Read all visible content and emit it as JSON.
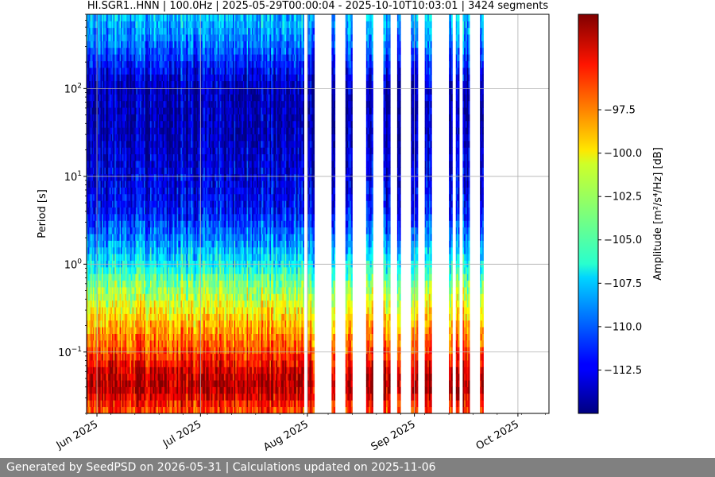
{
  "chart_data": {
    "type": "heatmap",
    "title": "HI.SGR1..HNN | 100.0Hz | 2025-05-29T00:00:04 - 2025-10-10T10:03:01 | 3424 segments",
    "ylabel": "Period [s]",
    "y_scale": "log",
    "y_inverted": true,
    "ylim": [
      0.02,
      700
    ],
    "y_ticks": [
      {
        "value": 0.1,
        "base": "10",
        "exp": "−1"
      },
      {
        "value": 1,
        "base": "10",
        "exp": "0"
      },
      {
        "value": 10,
        "base": "10",
        "exp": "1"
      },
      {
        "value": 100,
        "base": "10",
        "exp": "2"
      }
    ],
    "xlim": [
      "2025-05-29",
      "2025-10-10"
    ],
    "x_ticks": [
      {
        "date": "2025-06-01",
        "label": "Jun 2025"
      },
      {
        "date": "2025-07-01",
        "label": "Jul 2025"
      },
      {
        "date": "2025-08-01",
        "label": "Aug 2025"
      },
      {
        "date": "2025-09-01",
        "label": "Sep 2025"
      },
      {
        "date": "2025-10-01",
        "label": "Oct 2025"
      }
    ],
    "grid": true,
    "colormap": "jet",
    "colorbar": {
      "label": "Amplitude [m²/s⁴/Hz] [dB]",
      "range": [
        -115,
        -92
      ],
      "ticks": [
        {
          "value": -97.5,
          "label": "−97.5"
        },
        {
          "value": -100,
          "label": "−100.0"
        },
        {
          "value": -102.5,
          "label": "−102.5"
        },
        {
          "value": -105,
          "label": "−105.0"
        },
        {
          "value": -107.5,
          "label": "−107.5"
        },
        {
          "value": -110,
          "label": "−110.0"
        },
        {
          "value": -112.5,
          "label": "−112.5"
        }
      ]
    },
    "coverage": [
      {
        "start": "2025-05-29",
        "end": "2025-07-31"
      },
      {
        "start": "2025-08-01",
        "end": "2025-08-03"
      },
      {
        "start": "2025-08-08",
        "end": "2025-08-09"
      },
      {
        "start": "2025-08-12",
        "end": "2025-08-14"
      },
      {
        "start": "2025-08-18",
        "end": "2025-08-20"
      },
      {
        "start": "2025-08-23",
        "end": "2025-08-25"
      },
      {
        "start": "2025-08-27",
        "end": "2025-08-28"
      },
      {
        "start": "2025-08-31",
        "end": "2025-09-02"
      },
      {
        "start": "2025-09-04",
        "end": "2025-09-06"
      },
      {
        "start": "2025-09-11",
        "end": "2025-09-12"
      },
      {
        "start": "2025-09-13",
        "end": "2025-09-14"
      },
      {
        "start": "2025-09-15",
        "end": "2025-09-17"
      },
      {
        "start": "2025-09-20",
        "end": "2025-09-21"
      }
    ],
    "amplitude_profile": [
      {
        "period": 0.02,
        "db": -97
      },
      {
        "period": 0.04,
        "db": -93
      },
      {
        "period": 0.06,
        "db": -94
      },
      {
        "period": 0.1,
        "db": -96.5
      },
      {
        "period": 0.2,
        "db": -99
      },
      {
        "period": 0.4,
        "db": -102
      },
      {
        "period": 0.7,
        "db": -104.5
      },
      {
        "period": 1,
        "db": -106.5
      },
      {
        "period": 2,
        "db": -109.5
      },
      {
        "period": 4,
        "db": -112
      },
      {
        "period": 10,
        "db": -113
      },
      {
        "period": 30,
        "db": -114
      },
      {
        "period": 100,
        "db": -114
      },
      {
        "period": 300,
        "db": -110
      },
      {
        "period": 500,
        "db": -108.5
      },
      {
        "period": 700,
        "db": -108
      }
    ]
  },
  "footer": {
    "text": "Generated by SeedPSD on 2026-05-31 | Calculations updated on 2025-11-06"
  }
}
